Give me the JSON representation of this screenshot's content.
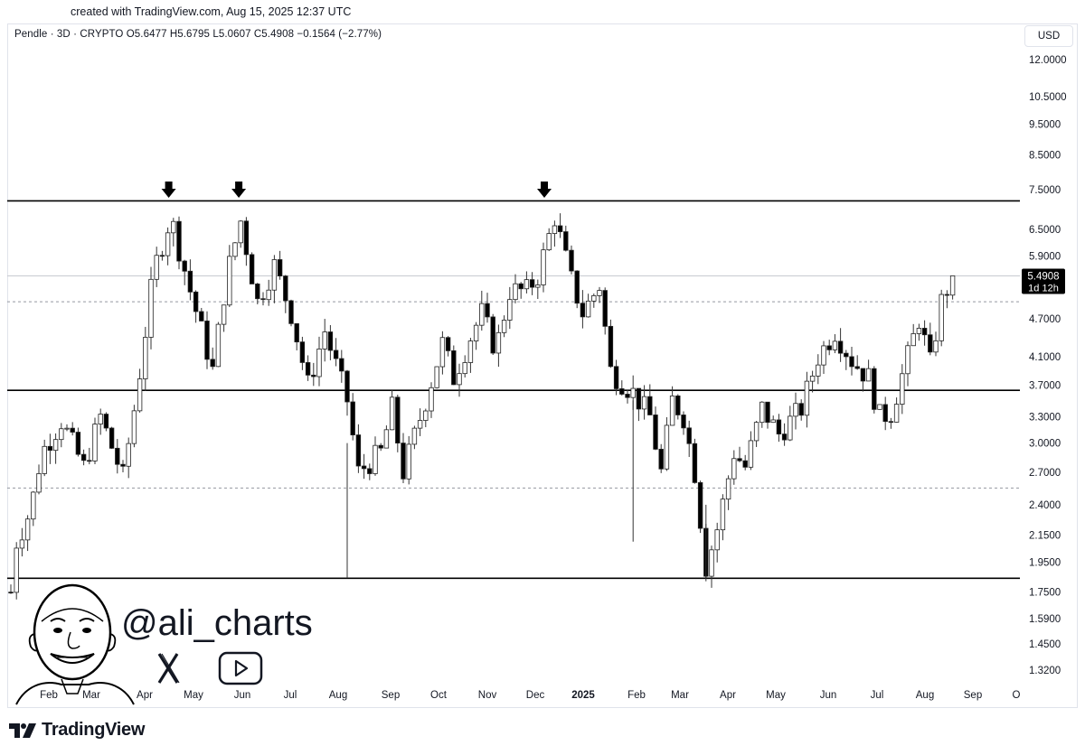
{
  "caption": "created with TradingView.com, Aug 15, 2025 12:37 UTC",
  "legend": "Pendle · 3D · CRYPTO  O5.6477  H5.6795  L5.0607  C5.4908  −0.1564 (−2.77%)",
  "currency": "USD",
  "watermark": "@ali_charts",
  "brand": "TradingView",
  "colors": {
    "up": "#ffffff",
    "down": "#000000",
    "wick": "#333333",
    "level": "#000000",
    "dashed": "#9598a1",
    "price_label_bg": "#000000"
  },
  "chart_data": {
    "type": "candlestick",
    "symbol": "Pendle · 3D · CRYPTO",
    "scale": "log",
    "ylim": [
      1.2,
      13.0
    ],
    "x_tick_labels": [
      "Feb",
      "Mar",
      "Apr",
      "May",
      "Jun",
      "Jul",
      "Aug",
      "Sep",
      "Oct",
      "Nov",
      "Dec",
      "2025",
      "Feb",
      "Mar",
      "Apr",
      "May",
      "Jun",
      "Jul",
      "Aug",
      "Sep",
      "O"
    ],
    "y_tick_labels": [
      "12.0000",
      "10.5000",
      "9.5000",
      "8.5000",
      "7.5000",
      "6.5000",
      "5.9000",
      "4.7000",
      "4.1000",
      "3.7000",
      "3.3000",
      "3.0000",
      "2.7000",
      "2.4000",
      "2.1500",
      "1.9500",
      "1.7500",
      "1.5900",
      "1.4500",
      "1.3200"
    ],
    "y_ticks": [
      12.0,
      10.5,
      9.5,
      8.5,
      7.5,
      6.5,
      5.9,
      4.7,
      4.1,
      3.7,
      3.3,
      3.0,
      2.7,
      2.4,
      2.15,
      1.95,
      1.75,
      1.59,
      1.45,
      1.32
    ],
    "horizontal_levels": [
      7.2,
      3.63,
      1.84
    ],
    "dashed_levels": [
      5.0,
      2.55
    ],
    "top_markers": [
      "Apr 2024",
      "Jun 2024",
      "Dec 2024"
    ],
    "last_price": "5.4908",
    "countdown": "1d 12h",
    "ohlc_last": {
      "open": 5.6477,
      "high": 5.6795,
      "low": 5.0607,
      "close": 5.4908,
      "change": -0.1564,
      "change_pct": -2.77
    },
    "path_points": [
      {
        "t": 0.0,
        "p": 1.75
      },
      {
        "t": 1.0,
        "p": 2.1
      },
      {
        "t": 3.5,
        "p": 2.35
      },
      {
        "t": 5.5,
        "p": 2.9
      },
      {
        "t": 9.0,
        "p": 3.25
      },
      {
        "t": 13.0,
        "p": 2.75
      },
      {
        "t": 16.0,
        "p": 3.3
      },
      {
        "t": 20.0,
        "p": 2.65
      },
      {
        "t": 22.5,
        "p": 3.6
      },
      {
        "t": 25.5,
        "p": 5.6
      },
      {
        "t": 28.5,
        "p": 6.8
      },
      {
        "t": 32.0,
        "p": 5.2
      },
      {
        "t": 36.0,
        "p": 3.9
      },
      {
        "t": 38.5,
        "p": 5.5
      },
      {
        "t": 41.0,
        "p": 6.7
      },
      {
        "t": 44.0,
        "p": 5.0
      },
      {
        "t": 47.0,
        "p": 5.7
      },
      {
        "t": 50.0,
        "p": 4.8
      },
      {
        "t": 53.0,
        "p": 3.7
      },
      {
        "t": 56.0,
        "p": 4.5
      },
      {
        "t": 60.0,
        "p": 3.5
      },
      {
        "t": 62.0,
        "p": 2.7
      },
      {
        "t": 66.0,
        "p": 2.9
      },
      {
        "t": 68.0,
        "p": 3.4
      },
      {
        "t": 70.0,
        "p": 2.7
      },
      {
        "t": 74.0,
        "p": 3.5
      },
      {
        "t": 77.0,
        "p": 4.3
      },
      {
        "t": 79.0,
        "p": 3.8
      },
      {
        "t": 82.0,
        "p": 4.4
      },
      {
        "t": 84.0,
        "p": 4.8
      },
      {
        "t": 86.5,
        "p": 4.2
      },
      {
        "t": 89.0,
        "p": 5.2
      },
      {
        "t": 92.0,
        "p": 5.2
      },
      {
        "t": 94.0,
        "p": 5.5
      },
      {
        "t": 97.0,
        "p": 6.8
      },
      {
        "t": 100.0,
        "p": 5.4
      },
      {
        "t": 102.0,
        "p": 4.8
      },
      {
        "t": 105.0,
        "p": 5.3
      },
      {
        "t": 107.0,
        "p": 3.9
      },
      {
        "t": 111.0,
        "p": 3.6
      },
      {
        "t": 114.0,
        "p": 3.3
      },
      {
        "t": 116.0,
        "p": 2.7
      },
      {
        "t": 118.0,
        "p": 3.5
      },
      {
        "t": 120.0,
        "p": 3.3
      },
      {
        "t": 122.0,
        "p": 2.7
      },
      {
        "t": 124.0,
        "p": 1.92
      },
      {
        "t": 126.0,
        "p": 2.2
      },
      {
        "t": 129.0,
        "p": 2.9
      },
      {
        "t": 131.0,
        "p": 2.75
      },
      {
        "t": 134.0,
        "p": 3.4
      },
      {
        "t": 137.0,
        "p": 3.1
      },
      {
        "t": 141.0,
        "p": 3.4
      },
      {
        "t": 144.0,
        "p": 4.1
      },
      {
        "t": 147.0,
        "p": 4.5
      },
      {
        "t": 150.0,
        "p": 4.05
      },
      {
        "t": 153.0,
        "p": 3.8
      },
      {
        "t": 155.0,
        "p": 3.3
      },
      {
        "t": 157.0,
        "p": 3.35
      },
      {
        "t": 160.0,
        "p": 4.1
      },
      {
        "t": 162.0,
        "p": 4.7
      },
      {
        "t": 164.0,
        "p": 4.0
      },
      {
        "t": 166.0,
        "p": 5.0
      },
      {
        "t": 168.0,
        "p": 5.49
      }
    ]
  }
}
